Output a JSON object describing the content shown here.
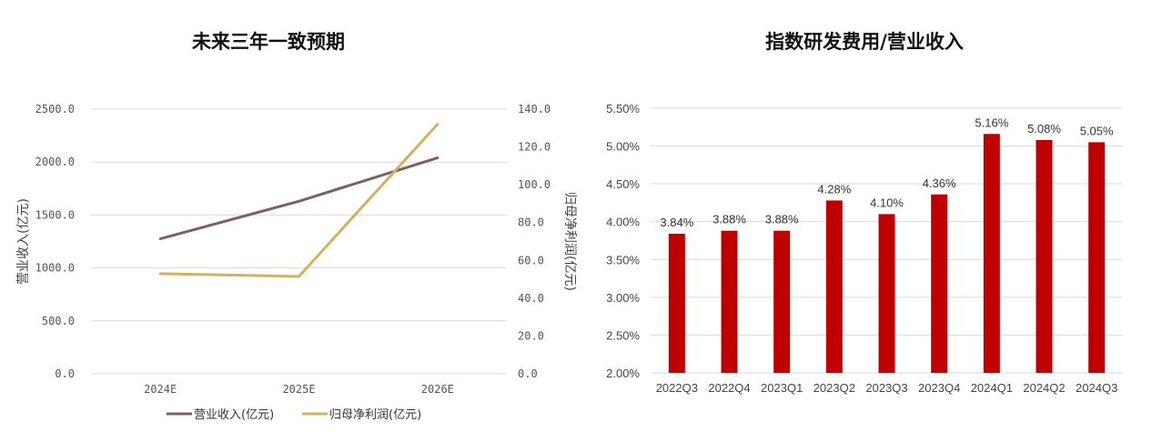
{
  "chart_data": [
    {
      "type": "line",
      "title": "未来三年一致预期",
      "categories": [
        "2024E",
        "2025E",
        "2026E"
      ],
      "ylabel": "营业收入(亿元)",
      "y2label": "归母净利润(亿元)",
      "ylim": [
        0,
        2500
      ],
      "y2lim": [
        0,
        140
      ],
      "yticks": [
        "0.0",
        "500.0",
        "1000.0",
        "1500.0",
        "2000.0",
        "2500.0"
      ],
      "y2ticks": [
        "0.0",
        "20.0",
        "40.0",
        "60.0",
        "80.0",
        "100.0",
        "120.0",
        "140.0"
      ],
      "legend_position": "bottom",
      "series": [
        {
          "name": "营业收入(亿元)",
          "axis": "left",
          "color": "#7d6060",
          "values": [
            1275,
            1630,
            2040
          ]
        },
        {
          "name": "归母净利润(亿元)",
          "axis": "right",
          "color": "#d4b060",
          "values": [
            53,
            51.5,
            132
          ]
        }
      ]
    },
    {
      "type": "bar",
      "title": "指数研发费用/营业收入",
      "categories": [
        "2022Q3",
        "2022Q4",
        "2023Q1",
        "2023Q2",
        "2023Q3",
        "2023Q4",
        "2024Q1",
        "2024Q2",
        "2024Q3"
      ],
      "values": [
        3.84,
        3.88,
        3.88,
        4.28,
        4.1,
        4.36,
        5.16,
        5.08,
        5.05
      ],
      "labels": [
        "3.84%",
        "3.88%",
        "3.88%",
        "4.28%",
        "4.10%",
        "4.36%",
        "5.16%",
        "5.08%",
        "5.05%"
      ],
      "ylim": [
        2.0,
        5.5
      ],
      "yticks": [
        "2.00%",
        "2.50%",
        "3.00%",
        "3.50%",
        "4.00%",
        "4.50%",
        "5.00%",
        "5.50%"
      ],
      "bar_color": "#c00000"
    }
  ]
}
